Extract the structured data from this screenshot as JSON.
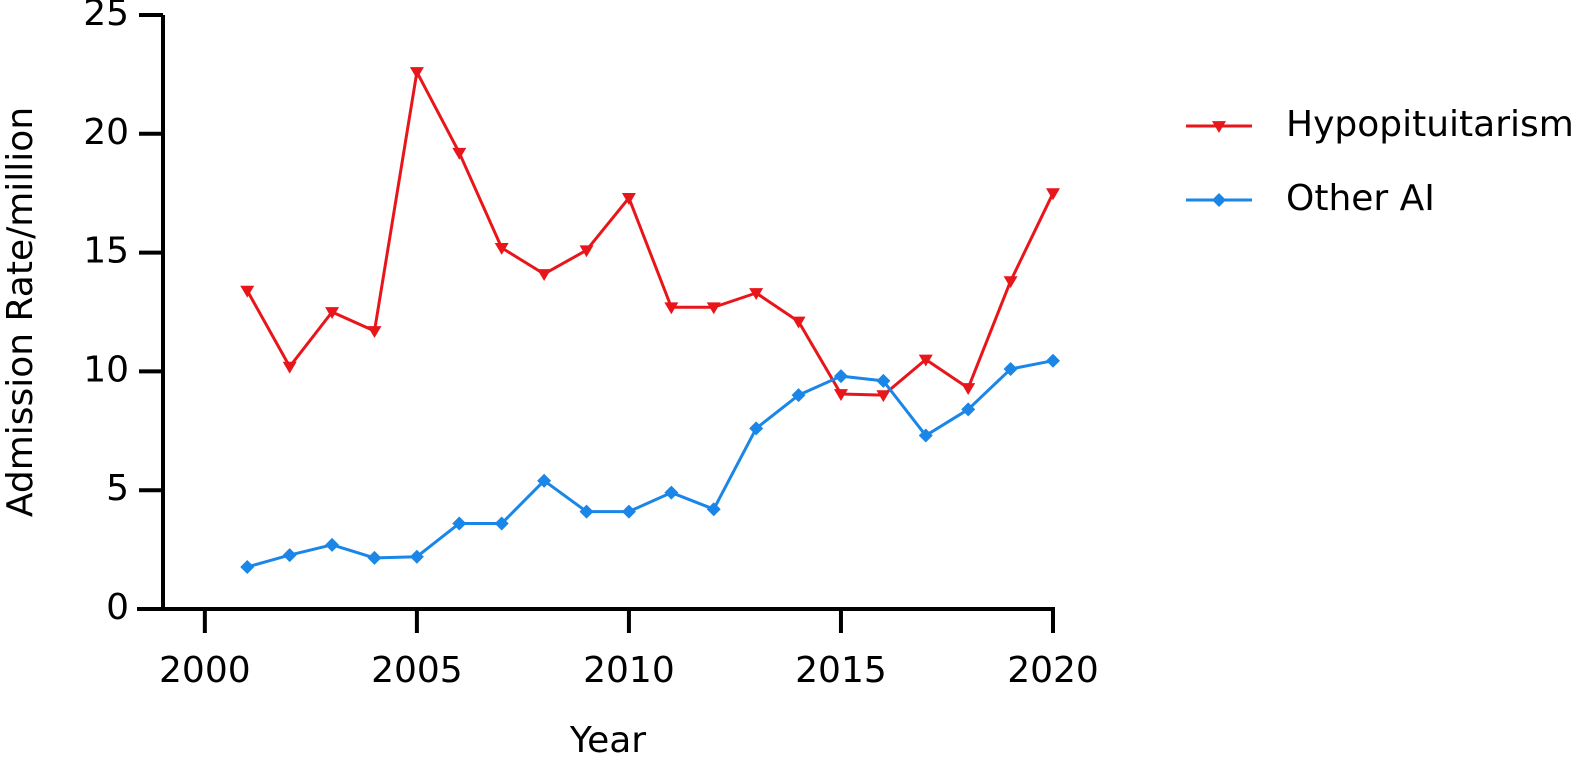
{
  "chart_data": {
    "type": "line",
    "x_label": "Year",
    "y_label": "Admission Rate/million",
    "x": [
      2001,
      2002,
      2003,
      2004,
      2005,
      2006,
      2007,
      2008,
      2009,
      2010,
      2011,
      2012,
      2013,
      2014,
      2015,
      2016,
      2017,
      2018,
      2019,
      2020
    ],
    "series": [
      {
        "name": "Hypopituitarism",
        "color": "#e8161b",
        "marker": "triangle-down",
        "values": [
          13.4,
          10.2,
          12.5,
          11.7,
          22.6,
          19.2,
          15.2,
          14.1,
          15.1,
          17.3,
          12.7,
          12.7,
          13.3,
          12.1,
          9.05,
          9.0,
          10.5,
          9.3,
          13.8,
          17.5
        ]
      },
      {
        "name": "Other AI",
        "color": "#1a86e8",
        "marker": "diamond",
        "values": [
          1.77,
          2.27,
          2.7,
          2.15,
          2.2,
          3.6,
          3.6,
          5.4,
          4.1,
          4.1,
          4.9,
          4.2,
          7.6,
          9.0,
          9.8,
          9.6,
          7.3,
          8.4,
          10.1,
          10.45
        ]
      }
    ],
    "xlim": [
      1998.4,
      2020
    ],
    "xticks": [
      2000,
      2005,
      2010,
      2015,
      2020
    ],
    "ylim": [
      0,
      25
    ],
    "yticks": [
      0,
      5,
      10,
      15,
      20,
      25
    ],
    "legend": "right"
  }
}
